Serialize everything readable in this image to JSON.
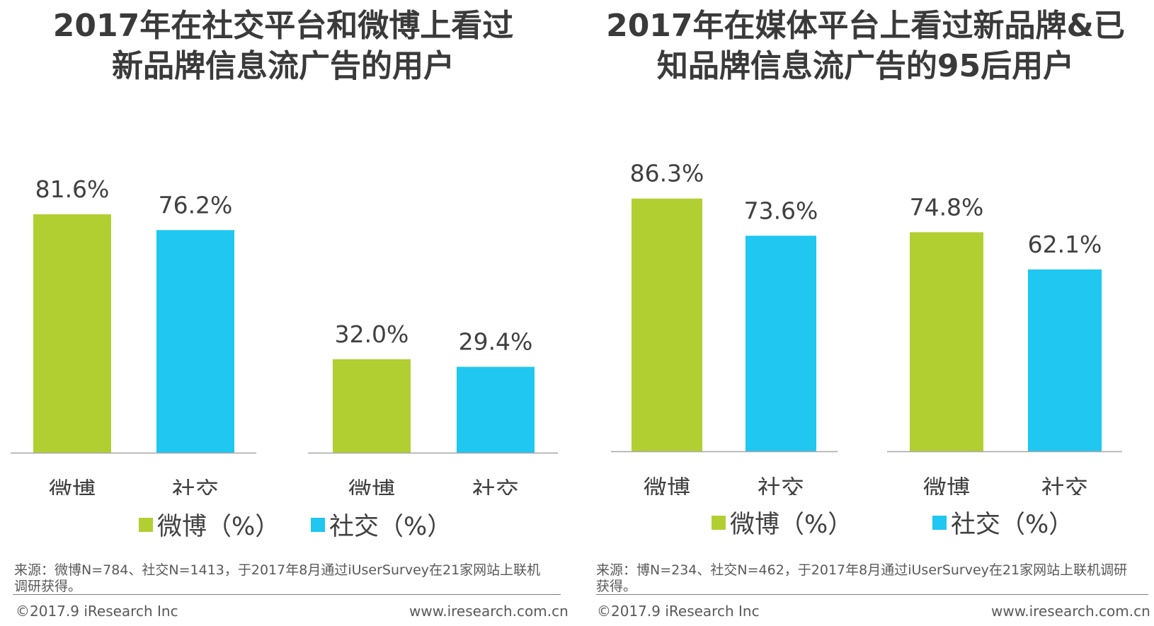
{
  "colors": {
    "weibo": "#b2cf31",
    "social": "#1fc7f1",
    "axis": "#a6a6a6"
  },
  "panels": [
    {
      "title": "2017年在社交平台和微博上看过新品牌信息流广告的用户",
      "title_line1": "2017年在社交平台和微博上看过",
      "title_line2": "新品牌信息流广告的用户",
      "legend": {
        "weibo": "微博（%）",
        "social": "社交（%）"
      },
      "source_line1": "来源：微博N=784、社交N=1413，于2017年8月通过iUserSurvey在21家网站上联机",
      "source_line2": "调研获得。",
      "copyright": "©2017.9 iResearch Inc",
      "website": "www.iresearch.com.cn"
    },
    {
      "title": "2017年在媒体平台上看过新品牌&已知品牌信息流广告的95后用户",
      "title_line1": "2017年在媒体平台上看过新品牌&已",
      "title_line2": "知品牌信息流广告的95后用户",
      "legend": {
        "weibo": "微博（%）",
        "social": "社交（%）"
      },
      "source_line1": "来源：博N=234、社交N=462，于2017年8月通过iUserSurvey在21家网站上联机调研",
      "source_line2": "获得。",
      "copyright": "©2017.9 iResearch Inc",
      "website": "www.iresearch.com.cn"
    }
  ],
  "chart_data": [
    {
      "type": "bar",
      "title": "2017年在社交平台和微博上看过新品牌信息流广告的用户",
      "groups": [
        {
          "categories": [
            "微博",
            "社交"
          ],
          "values": [
            81.6,
            76.2
          ],
          "labels": [
            "81.6%",
            "76.2%"
          ]
        },
        {
          "categories": [
            "微博",
            "社交"
          ],
          "values": [
            32.0,
            29.4
          ],
          "labels": [
            "32.0%",
            "29.4%"
          ]
        }
      ],
      "ylim": [
        0,
        100
      ],
      "legend": [
        "微博（%）",
        "社交（%）"
      ]
    },
    {
      "type": "bar",
      "title": "2017年在媒体平台上看过新品牌&已知品牌信息流广告的95后用户",
      "groups": [
        {
          "categories": [
            "微博",
            "社交"
          ],
          "values": [
            86.3,
            73.6
          ],
          "labels": [
            "86.3%",
            "73.6%"
          ]
        },
        {
          "categories": [
            "微博",
            "社交"
          ],
          "values": [
            74.8,
            62.1
          ],
          "labels": [
            "74.8%",
            "62.1%"
          ]
        }
      ],
      "ylim": [
        0,
        100
      ],
      "legend": [
        "微博（%）",
        "社交（%）"
      ]
    }
  ]
}
